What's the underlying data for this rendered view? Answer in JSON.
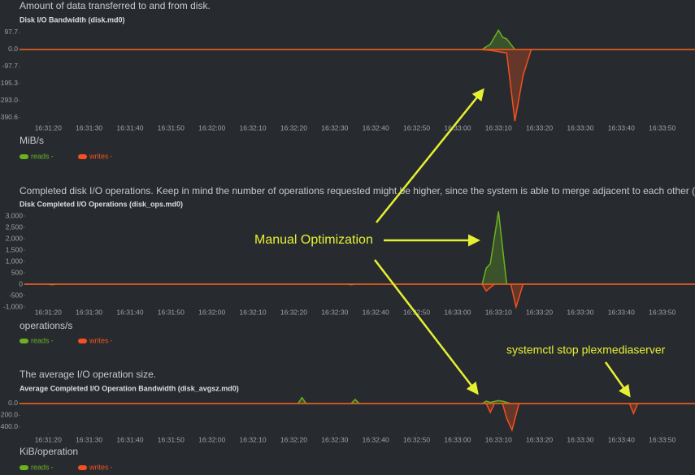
{
  "chart_data": [
    {
      "type": "area",
      "description": "Amount of data transferred to and from disk.",
      "title": "Disk I/O Bandwidth (disk.md0)",
      "unit": "MiB/s",
      "xlim": [
        59473,
        59638
      ],
      "xticks": [
        {
          "value": 59480,
          "label": "16:31:20"
        },
        {
          "value": 59490,
          "label": "16:31:30"
        },
        {
          "value": 59500,
          "label": "16:31:40"
        },
        {
          "value": 59510,
          "label": "16:31:50"
        },
        {
          "value": 59520,
          "label": "16:32:00"
        },
        {
          "value": 59530,
          "label": "16:32:10"
        },
        {
          "value": 59540,
          "label": "16:32:20"
        },
        {
          "value": 59550,
          "label": "16:32:30"
        },
        {
          "value": 59560,
          "label": "16:32:40"
        },
        {
          "value": 59570,
          "label": "16:32:50"
        },
        {
          "value": 59580,
          "label": "16:33:00"
        },
        {
          "value": 59590,
          "label": "16:33:10"
        },
        {
          "value": 59600,
          "label": "16:33:20"
        },
        {
          "value": 59610,
          "label": "16:33:30"
        },
        {
          "value": 59620,
          "label": "16:33:40"
        },
        {
          "value": 59630,
          "label": "16:33:50"
        }
      ],
      "ylim": [
        -414,
        153
      ],
      "yticks": [
        97.7,
        {
          "value": 0,
          "label": "0.0"
        },
        -97.7,
        -195.3,
        {
          "value": -293,
          "label": "-293.0"
        },
        -390.6
      ],
      "series": [
        {
          "name": "reads",
          "current": "-",
          "color": "#6bb120",
          "x": [
            59473,
            59586,
            59588,
            59590,
            59591,
            59592,
            59594,
            59638
          ],
          "values": [
            0,
            0,
            30,
            110,
            70,
            60,
            0,
            0
          ]
        },
        {
          "name": "writes",
          "current": "-",
          "color": "#f4501e",
          "x": [
            59473,
            59585,
            59588,
            59592,
            59594,
            59596,
            59598,
            59638
          ],
          "values": [
            0,
            0,
            -5,
            -20,
            -410,
            -150,
            0,
            0
          ]
        }
      ]
    },
    {
      "type": "area",
      "description": "Completed disk I/O operations. Keep in mind the number of operations requested might be higher, since the system is able to merge adjacent to each other (see merged operations chart).",
      "title": "Disk Completed I/O Operations (disk_ops.md0)",
      "unit": "operations/s",
      "xlim": [
        59473,
        59638
      ],
      "xticks": [
        {
          "value": 59480,
          "label": "16:31:20"
        },
        {
          "value": 59490,
          "label": "16:31:30"
        },
        {
          "value": 59500,
          "label": "16:31:40"
        },
        {
          "value": 59510,
          "label": "16:31:50"
        },
        {
          "value": 59520,
          "label": "16:32:00"
        },
        {
          "value": 59530,
          "label": "16:32:10"
        },
        {
          "value": 59540,
          "label": "16:32:20"
        },
        {
          "value": 59550,
          "label": "16:32:30"
        },
        {
          "value": 59560,
          "label": "16:32:40"
        },
        {
          "value": 59570,
          "label": "16:32:50"
        },
        {
          "value": 59580,
          "label": "16:33:00"
        },
        {
          "value": 59590,
          "label": "16:33:10"
        },
        {
          "value": 59600,
          "label": "16:33:20"
        },
        {
          "value": 59610,
          "label": "16:33:30"
        },
        {
          "value": 59620,
          "label": "16:33:40"
        },
        {
          "value": 59630,
          "label": "16:33:50"
        }
      ],
      "ylim": [
        -1214,
        3286
      ],
      "yticks": [
        {
          "value": 3000,
          "label": "3,000"
        },
        {
          "value": 2500,
          "label": "2,500"
        },
        {
          "value": 2000,
          "label": "2,000"
        },
        {
          "value": 1500,
          "label": "1,500"
        },
        {
          "value": 1000,
          "label": "1,000"
        },
        500,
        0,
        -500,
        {
          "value": -1000,
          "label": "-1,000"
        }
      ],
      "series": [
        {
          "name": "reads",
          "current": "-",
          "color": "#6bb120",
          "x": [
            59473,
            59480,
            59481,
            59482,
            59553,
            59554,
            59555,
            59586,
            59587,
            59588,
            59590,
            59592,
            59638
          ],
          "values": [
            0,
            0,
            -20,
            0,
            0,
            -20,
            0,
            0,
            700,
            900,
            3200,
            0,
            0
          ]
        },
        {
          "name": "writes",
          "current": "-",
          "color": "#f4501e",
          "x": [
            59473,
            59586,
            59587,
            59588,
            59589,
            59593,
            59594.3,
            59596,
            59638
          ],
          "values": [
            0,
            0,
            -300,
            -150,
            0,
            0,
            -1000,
            0,
            0
          ]
        }
      ]
    },
    {
      "type": "area",
      "description": "The average I/O operation size.",
      "title": "Average Completed I/O Operation Bandwidth (disk_avgsz.md0)",
      "unit": "KiB/operation",
      "xlim": [
        59473,
        59638
      ],
      "xticks": [
        {
          "value": 59480,
          "label": "16:31:20"
        },
        {
          "value": 59490,
          "label": "16:31:30"
        },
        {
          "value": 59500,
          "label": "16:31:40"
        },
        {
          "value": 59510,
          "label": "16:31:50"
        },
        {
          "value": 59520,
          "label": "16:32:00"
        },
        {
          "value": 59530,
          "label": "16:32:10"
        },
        {
          "value": 59540,
          "label": "16:32:20"
        },
        {
          "value": 59550,
          "label": "16:32:30"
        },
        {
          "value": 59560,
          "label": "16:32:40"
        },
        {
          "value": 59570,
          "label": "16:32:50"
        },
        {
          "value": 59580,
          "label": "16:33:00"
        },
        {
          "value": 59590,
          "label": "16:33:10"
        },
        {
          "value": 59600,
          "label": "16:33:20"
        },
        {
          "value": 59610,
          "label": "16:33:30"
        },
        {
          "value": 59620,
          "label": "16:33:40"
        },
        {
          "value": 59630,
          "label": "16:33:50"
        }
      ],
      "ylim": [
        -497,
        207
      ],
      "yticks": [
        {
          "value": 0,
          "label": "0.0"
        },
        {
          "value": -200,
          "label": "-200.0"
        },
        {
          "value": -400,
          "label": "-400.0"
        }
      ],
      "series": [
        {
          "name": "reads",
          "current": "-",
          "color": "#6bb120",
          "x": [
            59473,
            59541,
            59542,
            59543,
            59554,
            59555,
            59556,
            59586,
            59587,
            59588,
            59590,
            59591,
            59593,
            59638
          ],
          "values": [
            0,
            0,
            100,
            0,
            0,
            70,
            0,
            0,
            40,
            20,
            50,
            40,
            0,
            0
          ]
        },
        {
          "name": "writes",
          "current": "-",
          "color": "#f4501e",
          "x": [
            59473,
            59587,
            59588,
            59589,
            59591,
            59592,
            59593.3,
            59595,
            59622,
            59623,
            59624,
            59638
          ],
          "values": [
            0,
            0,
            -150,
            0,
            0,
            -250,
            -450,
            0,
            0,
            -170,
            0,
            0
          ]
        }
      ]
    }
  ],
  "annotations": [
    "Manual Optimization",
    "systemctl stop plexmediaserver"
  ]
}
